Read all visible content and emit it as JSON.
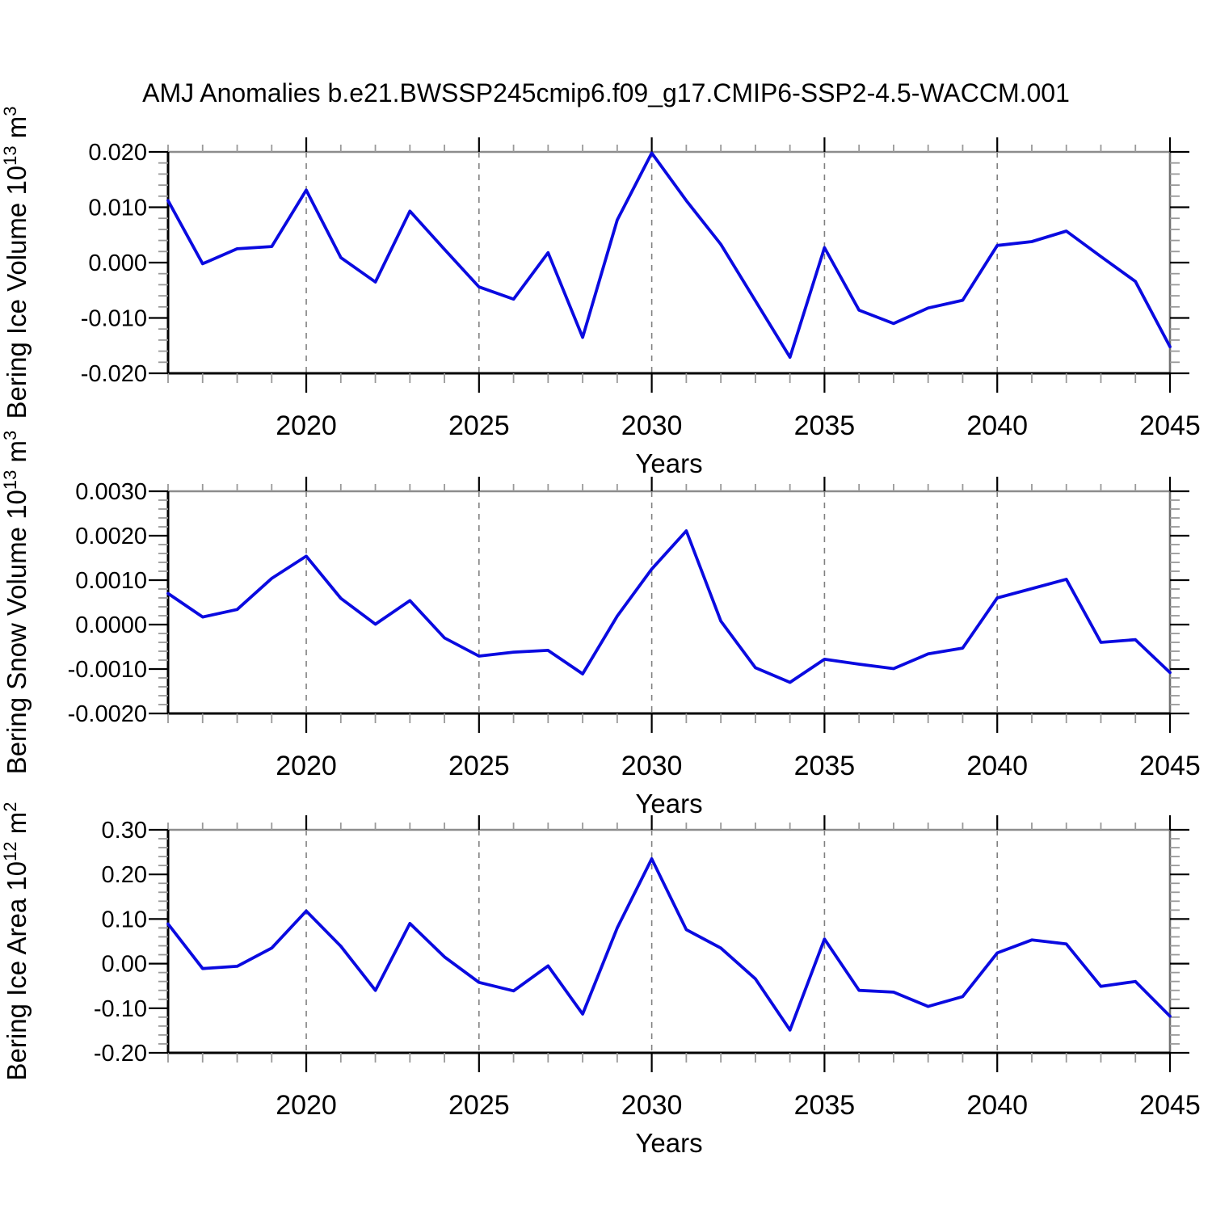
{
  "title": "AMJ Anomalies b.e21.BWSSP245cmip6.f09_g17.CMIP6-SSP2-4.5-WACCM.001",
  "style": {
    "line_color": "#0a0ae0",
    "grid_color": "#808080",
    "axis_color": "#000000",
    "frame_top_color": "#8c8c8c",
    "frame_right_color": "#707070",
    "major_tick_color": "#000000",
    "minor_tick_color": "#999999"
  },
  "x_axis": {
    "label": "Years",
    "range": [
      2016,
      2045
    ],
    "tick_labels": [
      "2020",
      "2025",
      "2030",
      "2035",
      "2040",
      "2045"
    ],
    "tick_years": [
      2020,
      2025,
      2030,
      2035,
      2040,
      2045
    ],
    "minor_step": 1,
    "grid_years": [
      2020,
      2025,
      2030,
      2035,
      2040
    ]
  },
  "chart_data": [
    {
      "type": "line",
      "name": "bering-ice-volume",
      "ylabel": "Bering Ice Volume 10^13 m^3",
      "ylabel_parts": [
        {
          "t": "Bering Ice Volume 10"
        },
        {
          "t": "13",
          "sup": true
        },
        {
          "t": " m"
        },
        {
          "t": "3",
          "sup": true
        }
      ],
      "xlabel": "Years",
      "ylim": [
        -0.02,
        0.02
      ],
      "yticks": [
        {
          "v": 0.02,
          "label": "0.020"
        },
        {
          "v": 0.01,
          "label": "0.010"
        },
        {
          "v": 0.0,
          "label": "0.000"
        },
        {
          "v": -0.01,
          "label": "-0.010"
        },
        {
          "v": -0.02,
          "label": "-0.020"
        }
      ],
      "minor_y_step": 0.002,
      "x": [
        2016,
        2017,
        2018,
        2019,
        2020,
        2021,
        2022,
        2023,
        2024,
        2025,
        2026,
        2027,
        2028,
        2029,
        2030,
        2031,
        2032,
        2033,
        2034,
        2035,
        2036,
        2037,
        2038,
        2039,
        2040,
        2041,
        2042,
        2043,
        2044,
        2045
      ],
      "values": [
        0.0112,
        -0.0002,
        0.0025,
        0.0029,
        0.0131,
        0.0009,
        -0.0035,
        0.0093,
        0.0024,
        -0.0044,
        -0.0066,
        0.0018,
        -0.0135,
        0.0077,
        0.0198,
        0.0112,
        0.0033,
        -0.0069,
        -0.0171,
        0.0027,
        -0.0086,
        -0.011,
        -0.0082,
        -0.0068,
        0.0031,
        0.0038,
        0.0057,
        0.0011,
        -0.0034,
        -0.0152
      ]
    },
    {
      "type": "line",
      "name": "bering-snow-volume",
      "ylabel": "Bering Snow Volume 10^13 m^3",
      "ylabel_parts": [
        {
          "t": "Bering Snow Volume 10"
        },
        {
          "t": "13",
          "sup": true
        },
        {
          "t": " m"
        },
        {
          "t": "3",
          "sup": true
        }
      ],
      "xlabel": "Years",
      "ylim": [
        -0.002,
        0.003
      ],
      "yticks": [
        {
          "v": 0.003,
          "label": "0.0030"
        },
        {
          "v": 0.002,
          "label": "0.0020"
        },
        {
          "v": 0.001,
          "label": "0.0010"
        },
        {
          "v": 0.0,
          "label": "0.0000"
        },
        {
          "v": -0.001,
          "label": "-0.0010"
        },
        {
          "v": -0.002,
          "label": "-0.0020"
        }
      ],
      "minor_y_step": 0.0002,
      "x": [
        2016,
        2017,
        2018,
        2019,
        2020,
        2021,
        2022,
        2023,
        2024,
        2025,
        2026,
        2027,
        2028,
        2029,
        2030,
        2031,
        2032,
        2033,
        2034,
        2035,
        2036,
        2037,
        2038,
        2039,
        2040,
        2041,
        2042,
        2043,
        2044,
        2045
      ],
      "values": [
        0.0007,
        0.00017,
        0.00034,
        0.00104,
        0.00154,
        0.00059,
        1e-05,
        0.00054,
        -0.0003,
        -0.00071,
        -0.00062,
        -0.00058,
        -0.00111,
        0.00019,
        0.00125,
        0.00211,
        8e-05,
        -0.00097,
        -0.0013,
        -0.00078,
        -0.00089,
        -0.00099,
        -0.00066,
        -0.00053,
        0.0006,
        0.00081,
        0.00102,
        -0.0004,
        -0.00034,
        -0.00108
      ]
    },
    {
      "type": "line",
      "name": "bering-ice-area",
      "ylabel": "Bering Ice Area 10^12 m^2",
      "ylabel_parts": [
        {
          "t": "Bering Ice Area 10"
        },
        {
          "t": "12",
          "sup": true
        },
        {
          "t": " m"
        },
        {
          "t": "2",
          "sup": true
        }
      ],
      "xlabel": "Years",
      "ylim": [
        -0.2,
        0.3
      ],
      "yticks": [
        {
          "v": 0.3,
          "label": "0.30"
        },
        {
          "v": 0.2,
          "label": "0.20"
        },
        {
          "v": 0.1,
          "label": "0.10"
        },
        {
          "v": 0.0,
          "label": "0.00"
        },
        {
          "v": -0.1,
          "label": "-0.10"
        },
        {
          "v": -0.2,
          "label": "-0.20"
        }
      ],
      "minor_y_step": 0.02,
      "x": [
        2016,
        2017,
        2018,
        2019,
        2020,
        2021,
        2022,
        2023,
        2024,
        2025,
        2026,
        2027,
        2028,
        2029,
        2030,
        2031,
        2032,
        2033,
        2034,
        2035,
        2036,
        2037,
        2038,
        2039,
        2040,
        2041,
        2042,
        2043,
        2044,
        2045
      ],
      "values": [
        0.089,
        -0.011,
        -0.006,
        0.035,
        0.118,
        0.039,
        -0.06,
        0.09,
        0.015,
        -0.042,
        -0.061,
        -0.005,
        -0.113,
        0.08,
        0.235,
        0.076,
        0.035,
        -0.034,
        -0.149,
        0.055,
        -0.06,
        -0.064,
        -0.096,
        -0.074,
        0.024,
        0.053,
        0.044,
        -0.051,
        -0.04,
        -0.118
      ]
    }
  ]
}
